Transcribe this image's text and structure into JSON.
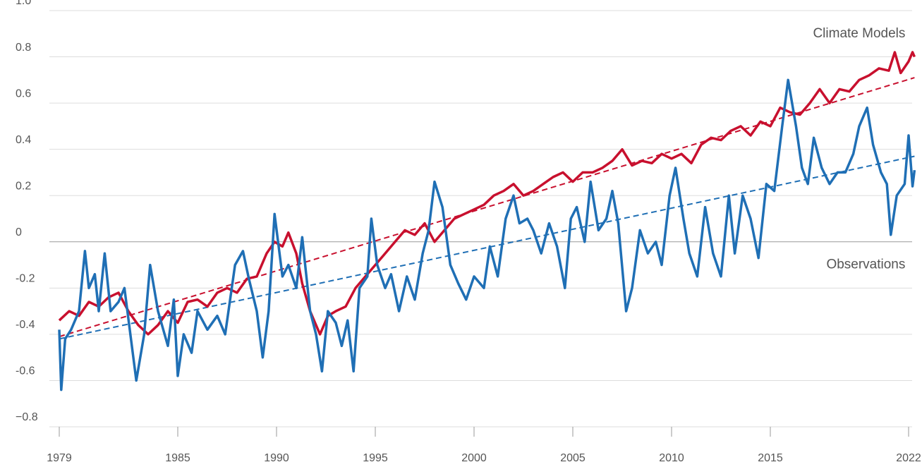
{
  "chart_data": {
    "type": "line",
    "annotations": [
      {
        "text": "Climate Models",
        "color": "#c8102e",
        "x": 2022.3,
        "y": 0.9
      },
      {
        "text": "Observations",
        "color": "#1f6fb5",
        "x": 2022.3,
        "y": -0.1
      }
    ],
    "xlim": [
      1978.5,
      2022.2
    ],
    "ylim": [
      -0.8,
      1.0
    ],
    "xticks": [
      1979,
      1985,
      1990,
      1995,
      2000,
      2005,
      2010,
      2015,
      2022
    ],
    "yticks": [
      {
        "value": -0.8,
        "label": "−0.8"
      },
      -0.6,
      -0.4,
      -0.2,
      0,
      0.2,
      0.4,
      0.6,
      0.8,
      {
        "value": 1.0,
        "label": "1.0"
      }
    ],
    "grid": true,
    "series": [
      {
        "color": "#c8102e",
        "dashed": true,
        "x": [
          1979.0,
          2022.3
        ],
        "values": [
          -0.41,
          0.71
        ]
      },
      {
        "color": "#1f6fb5",
        "dashed": true,
        "x": [
          1979.0,
          2022.3
        ],
        "values": [
          -0.42,
          0.37
        ]
      },
      {
        "name": "Climate Models",
        "color": "#c8102e",
        "x": [
          1979.0,
          1979.5,
          1980.0,
          1980.5,
          1981.0,
          1981.5,
          1982.0,
          1982.5,
          1983.0,
          1983.5,
          1984.0,
          1984.5,
          1985.0,
          1985.5,
          1986.0,
          1986.5,
          1987.0,
          1987.5,
          1988.0,
          1988.5,
          1989.0,
          1989.5,
          1989.9,
          1990.3,
          1990.6,
          1991.0,
          1991.3,
          1991.7,
          1992.2,
          1992.6,
          1993.0,
          1993.5,
          1994.0,
          1994.5,
          1995.0,
          1995.5,
          1996.0,
          1996.5,
          1997.0,
          1997.5,
          1998.0,
          1998.5,
          1999.0,
          1999.5,
          2000.0,
          2000.5,
          2001.0,
          2001.5,
          2002.0,
          2002.5,
          2003.0,
          2003.5,
          2004.0,
          2004.5,
          2005.0,
          2005.5,
          2006.0,
          2006.5,
          2007.0,
          2007.5,
          2008.0,
          2008.5,
          2009.0,
          2009.5,
          2010.0,
          2010.5,
          2011.0,
          2011.5,
          2012.0,
          2012.5,
          2013.0,
          2013.5,
          2014.0,
          2014.5,
          2015.0,
          2015.5,
          2016.0,
          2016.5,
          2017.0,
          2017.5,
          2018.0,
          2018.5,
          2019.0,
          2019.5,
          2020.0,
          2020.5,
          2021.0,
          2021.3,
          2021.6,
          2022.0,
          2022.2,
          2022.3
        ],
        "values": [
          -0.34,
          -0.3,
          -0.32,
          -0.26,
          -0.28,
          -0.24,
          -0.22,
          -0.3,
          -0.36,
          -0.4,
          -0.36,
          -0.3,
          -0.35,
          -0.26,
          -0.25,
          -0.28,
          -0.22,
          -0.2,
          -0.22,
          -0.16,
          -0.15,
          -0.05,
          0.0,
          -0.02,
          0.04,
          -0.05,
          -0.18,
          -0.3,
          -0.4,
          -0.32,
          -0.3,
          -0.28,
          -0.2,
          -0.15,
          -0.1,
          -0.05,
          0.0,
          0.05,
          0.03,
          0.08,
          0.0,
          0.05,
          0.1,
          0.12,
          0.14,
          0.16,
          0.2,
          0.22,
          0.25,
          0.2,
          0.22,
          0.25,
          0.28,
          0.3,
          0.26,
          0.3,
          0.3,
          0.32,
          0.35,
          0.4,
          0.33,
          0.35,
          0.34,
          0.38,
          0.36,
          0.38,
          0.34,
          0.42,
          0.45,
          0.44,
          0.48,
          0.5,
          0.46,
          0.52,
          0.5,
          0.58,
          0.56,
          0.55,
          0.6,
          0.66,
          0.6,
          0.66,
          0.65,
          0.7,
          0.72,
          0.75,
          0.74,
          0.82,
          0.73,
          0.78,
          0.82,
          0.8
        ]
      },
      {
        "name": "Observations",
        "color": "#1f6fb5",
        "x": [
          1979.0,
          1979.1,
          1979.3,
          1979.6,
          1980.0,
          1980.3,
          1980.5,
          1980.8,
          1981.0,
          1981.3,
          1981.6,
          1982.0,
          1982.3,
          1982.6,
          1982.9,
          1983.3,
          1983.6,
          1984.0,
          1984.5,
          1984.8,
          1985.0,
          1985.3,
          1985.7,
          1986.0,
          1986.5,
          1987.0,
          1987.4,
          1987.9,
          1988.3,
          1988.6,
          1989.0,
          1989.3,
          1989.6,
          1989.9,
          1990.3,
          1990.6,
          1991.0,
          1991.3,
          1991.7,
          1992.0,
          1992.3,
          1992.6,
          1993.0,
          1993.3,
          1993.6,
          1993.9,
          1994.2,
          1994.6,
          1994.8,
          1995.1,
          1995.5,
          1995.8,
          1996.2,
          1996.6,
          1997.0,
          1997.4,
          1997.7,
          1998.0,
          1998.4,
          1998.8,
          1999.2,
          1999.6,
          2000.0,
          2000.5,
          2000.8,
          2001.2,
          2001.6,
          2002.0,
          2002.3,
          2002.7,
          2003.0,
          2003.4,
          2003.8,
          2004.2,
          2004.6,
          2004.9,
          2005.2,
          2005.6,
          2005.9,
          2006.3,
          2006.7,
          2007.0,
          2007.3,
          2007.7,
          2008.0,
          2008.4,
          2008.8,
          2009.2,
          2009.5,
          2009.9,
          2010.2,
          2010.6,
          2010.9,
          2011.3,
          2011.7,
          2012.1,
          2012.5,
          2012.9,
          2013.2,
          2013.6,
          2014.0,
          2014.4,
          2014.8,
          2015.2,
          2015.6,
          2015.9,
          2016.3,
          2016.6,
          2016.9,
          2017.2,
          2017.6,
          2018.0,
          2018.4,
          2018.8,
          2019.2,
          2019.5,
          2019.9,
          2020.2,
          2020.6,
          2020.9,
          2021.1,
          2021.4,
          2021.8,
          2022.0,
          2022.2,
          2022.3
        ],
        "values": [
          -0.38,
          -0.64,
          -0.42,
          -0.38,
          -0.3,
          -0.04,
          -0.2,
          -0.14,
          -0.3,
          -0.05,
          -0.3,
          -0.26,
          -0.2,
          -0.4,
          -0.6,
          -0.4,
          -0.1,
          -0.3,
          -0.45,
          -0.25,
          -0.58,
          -0.4,
          -0.48,
          -0.3,
          -0.38,
          -0.32,
          -0.4,
          -0.1,
          -0.04,
          -0.16,
          -0.3,
          -0.5,
          -0.3,
          0.12,
          -0.15,
          -0.1,
          -0.2,
          0.02,
          -0.3,
          -0.4,
          -0.56,
          -0.3,
          -0.35,
          -0.45,
          -0.34,
          -0.56,
          -0.2,
          -0.15,
          0.1,
          -0.1,
          -0.2,
          -0.14,
          -0.3,
          -0.15,
          -0.25,
          -0.05,
          0.05,
          0.26,
          0.15,
          -0.1,
          -0.18,
          -0.25,
          -0.15,
          -0.2,
          -0.02,
          -0.15,
          0.1,
          0.2,
          0.08,
          0.1,
          0.05,
          -0.05,
          0.08,
          -0.02,
          -0.2,
          0.1,
          0.15,
          0.0,
          0.26,
          0.05,
          0.1,
          0.22,
          0.08,
          -0.3,
          -0.2,
          0.05,
          -0.05,
          0.0,
          -0.1,
          0.2,
          0.32,
          0.1,
          -0.05,
          -0.15,
          0.15,
          -0.05,
          -0.15,
          0.2,
          -0.05,
          0.2,
          0.1,
          -0.07,
          0.25,
          0.22,
          0.5,
          0.7,
          0.5,
          0.32,
          0.25,
          0.45,
          0.32,
          0.25,
          0.3,
          0.3,
          0.38,
          0.5,
          0.58,
          0.42,
          0.3,
          0.25,
          0.03,
          0.2,
          0.25,
          0.46,
          0.24,
          0.31
        ]
      }
    ]
  }
}
